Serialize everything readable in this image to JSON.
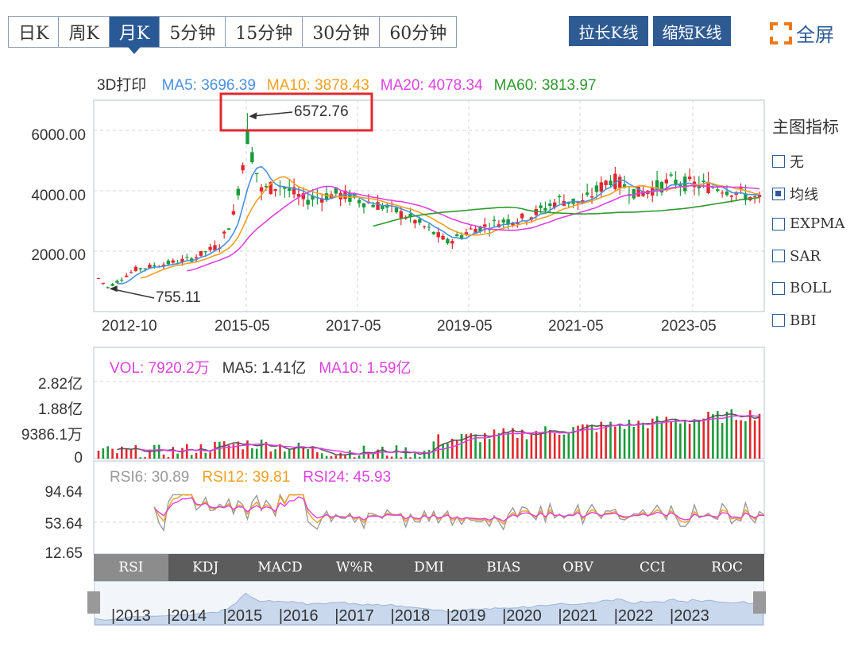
{
  "period_tabs": [
    {
      "label": "日K",
      "active": false
    },
    {
      "label": "周K",
      "active": false
    },
    {
      "label": "月K",
      "active": true
    },
    {
      "label": "5分钟",
      "active": false
    },
    {
      "label": "15分钟",
      "active": false
    },
    {
      "label": "30分钟",
      "active": false
    },
    {
      "label": "60分钟",
      "active": false
    }
  ],
  "buttons": {
    "stretch": "拉长K线",
    "shrink": "缩短K线",
    "fullscreen": "全屏"
  },
  "ma_legend": {
    "prefix": "3D打印",
    "items": [
      {
        "text": "MA5: 3696.39",
        "color": "#4a90e2"
      },
      {
        "text": "MA10: 3878.43",
        "color": "#f0a020"
      },
      {
        "text": "MA20: 4078.34",
        "color": "#e040e0"
      },
      {
        "text": "MA60: 3813.97",
        "color": "#2e9a2e"
      }
    ]
  },
  "indicators": {
    "title": "主图指标",
    "items": [
      {
        "label": "无",
        "checked": false
      },
      {
        "label": "均线",
        "checked": true
      },
      {
        "label": "EXPMA",
        "checked": false
      },
      {
        "label": "SAR",
        "checked": false
      },
      {
        "label": "BOLL",
        "checked": false
      },
      {
        "label": "BBI",
        "checked": false
      }
    ]
  },
  "main_chart": {
    "y_ticks": [
      "6000.00",
      "4000.00",
      "2000.00"
    ],
    "x_ticks": [
      "2012-10",
      "2015-05",
      "2017-05",
      "2019-05",
      "2021-05",
      "2023-05"
    ],
    "high_label": "6572.76",
    "low_label": "755.11"
  },
  "vol_legend": [
    {
      "text": "VOL: 7920.2万",
      "color": "#e040e0"
    },
    {
      "text": "MA5: 1.41亿",
      "color": "#333333"
    },
    {
      "text": "MA10: 1.59亿",
      "color": "#e040e0"
    }
  ],
  "vol_y_ticks": [
    "2.82亿",
    "1.88亿",
    "9386.1万",
    "0"
  ],
  "rsi_legend": [
    {
      "text": "RSI6: 30.89",
      "color": "#999999"
    },
    {
      "text": "RSI12: 39.81",
      "color": "#f0a020"
    },
    {
      "text": "RSI24: 45.93",
      "color": "#e040e0"
    }
  ],
  "rsi_y_ticks": [
    "94.64",
    "53.64",
    "12.65"
  ],
  "indicator_tabs": [
    "RSI",
    "KDJ",
    "MACD",
    "W%R",
    "DMI",
    "BIAS",
    "OBV",
    "CCI",
    "ROC"
  ],
  "navigator_years": [
    "|2013",
    "|2014",
    "|2015",
    "|2016",
    "|2017",
    "|2018",
    "|2019",
    "|2020",
    "|2021",
    "|2022",
    "|2023"
  ],
  "colors": {
    "up": "#e0282e",
    "down": "#1a9a3a",
    "ma5": "#4a90e2",
    "ma10": "#f0a020",
    "ma20": "#e040e0",
    "ma60": "#2e9a2e"
  },
  "chart_data": {
    "type": "candlestick",
    "x_range": [
      "2012-10",
      "2024-08"
    ],
    "ylim": [
      0,
      7000
    ],
    "y_ticks": [
      2000,
      4000,
      6000
    ],
    "annotations": [
      {
        "label": "6572.76",
        "date": "2015-06",
        "value": 6572.76
      },
      {
        "label": "755.11",
        "date": "2012-12",
        "value": 755.11
      }
    ],
    "series": [
      {
        "name": "MA5",
        "value_last": 3696.39
      },
      {
        "name": "MA10",
        "value_last": 3878.43
      },
      {
        "name": "MA20",
        "value_last": 4078.34
      },
      {
        "name": "MA60",
        "value_last": 3813.97
      }
    ],
    "price_path": [
      [
        "2012-10",
        1100
      ],
      [
        "2012-12",
        800
      ],
      [
        "2013-06",
        1400
      ],
      [
        "2014-01",
        1600
      ],
      [
        "2014-06",
        1750
      ],
      [
        "2014-12",
        2200
      ],
      [
        "2015-03",
        3200
      ],
      [
        "2015-06",
        5800
      ],
      [
        "2015-09",
        4000
      ],
      [
        "2016-01",
        4200
      ],
      [
        "2016-06",
        3700
      ],
      [
        "2017-01",
        3900
      ],
      [
        "2017-06",
        3700
      ],
      [
        "2018-01",
        3400
      ],
      [
        "2018-06",
        3000
      ],
      [
        "2019-01",
        2300
      ],
      [
        "2019-06",
        2700
      ],
      [
        "2020-01",
        3000
      ],
      [
        "2020-06",
        3100
      ],
      [
        "2021-01",
        3700
      ],
      [
        "2021-06",
        3600
      ],
      [
        "2021-12",
        4400
      ],
      [
        "2022-06",
        3900
      ],
      [
        "2023-01",
        4300
      ],
      [
        "2023-06",
        4200
      ],
      [
        "2023-12",
        4100
      ],
      [
        "2024-08",
        3700
      ]
    ],
    "volume_ylim": [
      0,
      2.82
    ],
    "volume_y_ticks": [
      0,
      0.94,
      1.88,
      2.82
    ],
    "volume_last": "7920.2万",
    "rsi_ylim": [
      12.65,
      94.64
    ],
    "rsi_y_ticks": [
      12.65,
      53.64,
      94.64
    ],
    "rsi_last": {
      "RSI6": 30.89,
      "RSI12": 39.81,
      "RSI24": 45.93
    }
  }
}
